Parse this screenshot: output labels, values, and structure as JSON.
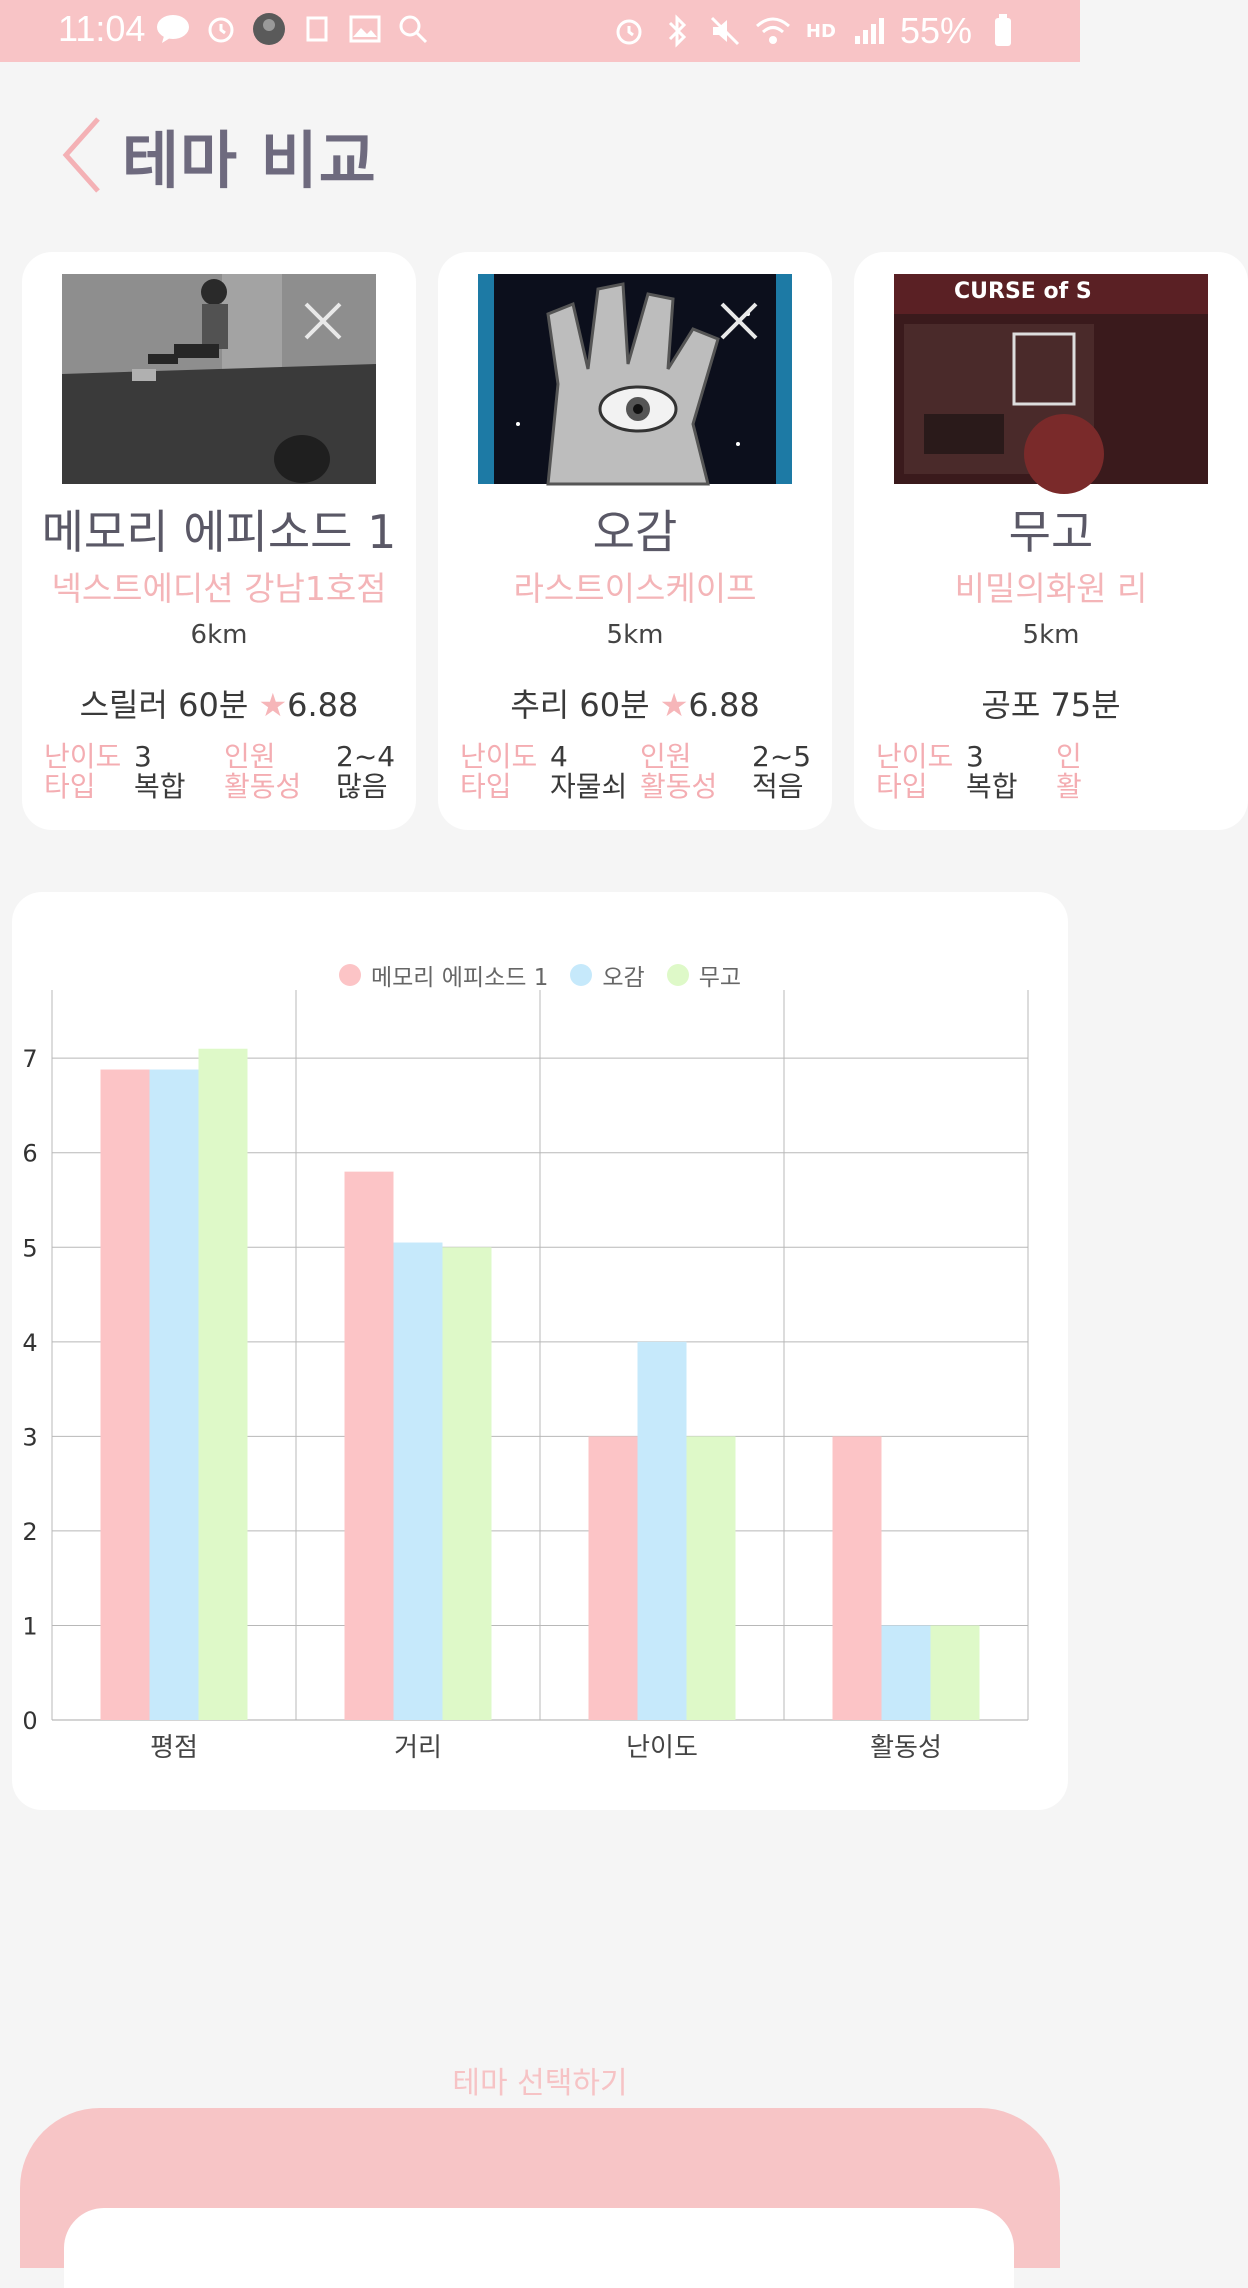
{
  "status_bar": {
    "time": "11:04",
    "battery": "55%",
    "hd_label": "HD"
  },
  "header": {
    "title": "테마 비교"
  },
  "cards": [
    {
      "name": "메모리 에피소드 1",
      "store": "넥스트에디션 강남1호점",
      "distance": "6km",
      "genre": "스릴러",
      "duration": "60분",
      "rating": "6.88",
      "labels": {
        "difficulty": "난이도",
        "people": "인원",
        "type": "타입",
        "activity": "활동성"
      },
      "difficulty": "3",
      "people": "2~4",
      "type": "복합",
      "activity": "많음"
    },
    {
      "name": "오감",
      "store": "라스트이스케이프",
      "distance": "5km",
      "genre": "추리",
      "duration": "60분",
      "rating": "6.88",
      "labels": {
        "difficulty": "난이도",
        "people": "인원",
        "type": "타입",
        "activity": "활동성"
      },
      "difficulty": "4",
      "people": "2~5",
      "type": "자물쇠",
      "activity": "적음"
    },
    {
      "name": "무고",
      "store": "비밀의화원 리",
      "distance": "5km",
      "genre": "공포",
      "duration": "75분",
      "rating": "",
      "labels": {
        "difficulty": "난이도",
        "people": "인",
        "type": "타입",
        "activity": "활"
      },
      "difficulty": "3",
      "people": "",
      "type": "복합",
      "activity": ""
    }
  ],
  "chart_data": {
    "type": "bar",
    "categories": [
      "평점",
      "거리",
      "난이도",
      "활동성"
    ],
    "series": [
      {
        "name": "메모리 에피소드 1",
        "values": [
          6.88,
          5.8,
          3,
          3
        ],
        "color": "#fcc4c6"
      },
      {
        "name": "오감",
        "values": [
          6.88,
          5.05,
          4,
          1
        ],
        "color": "#c6e9fb"
      },
      {
        "name": "무고",
        "values": [
          7.1,
          5.0,
          3,
          1
        ],
        "color": "#def9c8"
      }
    ],
    "ylim": [
      0,
      7.7
    ],
    "yticks": [
      "0",
      "1",
      "2",
      "3",
      "4",
      "5",
      "6",
      "7"
    ],
    "grid": true,
    "legend_position": "top-center"
  },
  "bottom": {
    "select_label": "테마 선택하기"
  },
  "colors": {
    "accent_pink": "#f8c4c6",
    "title_gray": "#6e6a7e"
  }
}
